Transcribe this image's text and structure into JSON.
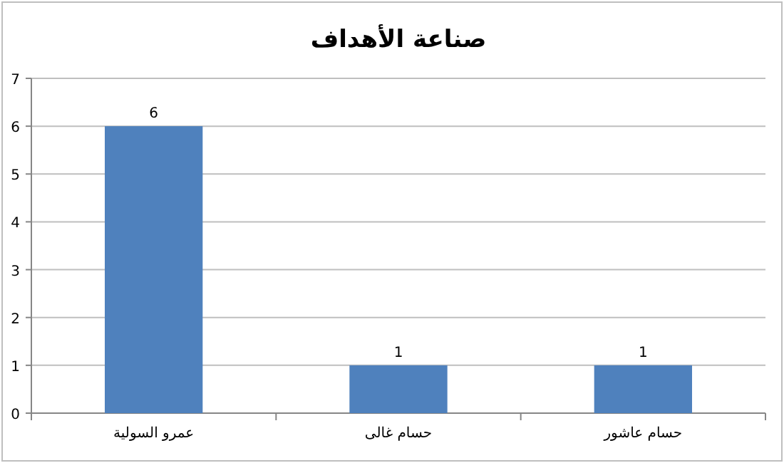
{
  "chart_data": {
    "type": "bar",
    "title": "صناعة الأهداف",
    "categories": [
      "عمرو السولية",
      "حسام غالى",
      "حسام عاشور"
    ],
    "values": [
      6,
      1,
      1
    ],
    "color": "#4f81bd",
    "ylim": [
      0,
      7
    ],
    "yticks": [
      0,
      1,
      2,
      3,
      4,
      5,
      6,
      7
    ],
    "grid": "y",
    "data_labels": true
  }
}
